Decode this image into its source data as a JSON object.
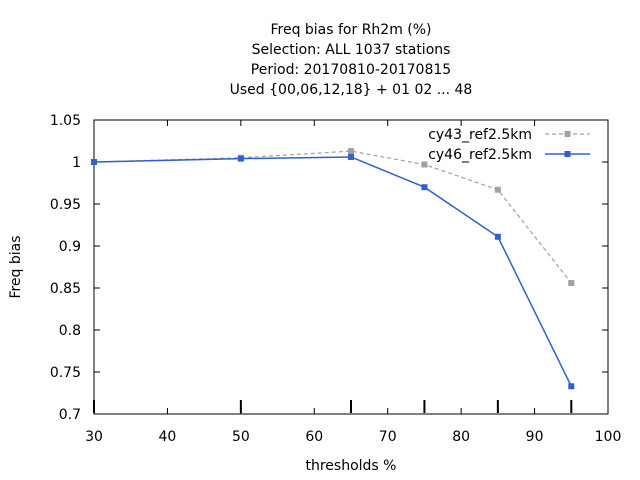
{
  "chart_data": {
    "type": "line",
    "title_lines": [
      "Freq bias  for Rh2m (%)",
      "Selection: ALL    1037 stations",
      "Period: 20170810-20170815",
      "Used {00,06,12,18} + 01 02 ... 48"
    ],
    "xlabel": "thresholds %",
    "ylabel": "Freq bias",
    "xlim": [
      30,
      100
    ],
    "ylim": [
      0.7,
      1.05
    ],
    "xticks": [
      30,
      40,
      50,
      60,
      70,
      80,
      90,
      100
    ],
    "yticks": [
      0.7,
      0.75,
      0.8,
      0.85,
      0.9,
      0.95,
      1,
      1.05
    ],
    "ytick_labels": [
      "0.7",
      "0.75",
      "0.8",
      "0.85",
      "0.9",
      "0.95",
      "1",
      "1.05"
    ],
    "grid": false,
    "legend_position": "top-right",
    "series": [
      {
        "name": "cy43_ref2.5km",
        "color": "#a0a0a0",
        "style": "dashed",
        "x": [
          30,
          50,
          65,
          75,
          85,
          95
        ],
        "y": [
          1.0,
          1.005,
          1.013,
          0.997,
          0.967,
          0.856
        ]
      },
      {
        "name": "cy46_ref2.5km",
        "color": "#3060d0",
        "style": "solid",
        "x": [
          30,
          50,
          65,
          75,
          85,
          95
        ],
        "y": [
          1.0,
          1.004,
          1.006,
          0.97,
          0.911,
          0.733
        ]
      }
    ],
    "threshold_marks": [
      30,
      50,
      65,
      75,
      85,
      95
    ]
  }
}
